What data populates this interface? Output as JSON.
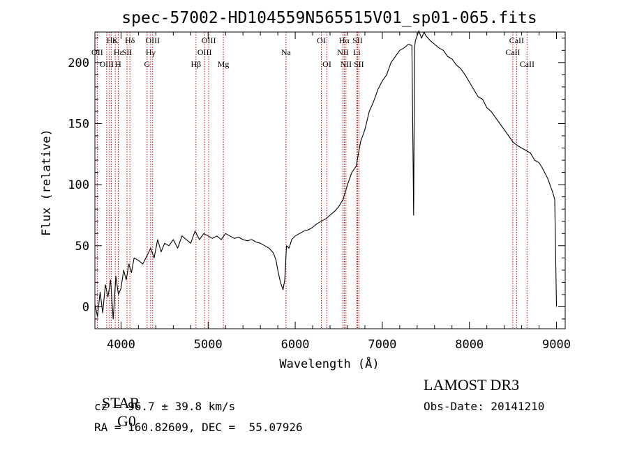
{
  "chart_data": {
    "type": "line",
    "title": "spec-57002-HD104559N565515V01_sp01-065.fits",
    "xlabel": "Wavelength (Å)",
    "ylabel": "Flux (relative)",
    "xlim": [
      3700,
      9100
    ],
    "ylim": [
      -18,
      225
    ],
    "xticks": [
      4000,
      5000,
      6000,
      7000,
      8000,
      9000
    ],
    "yticks": [
      0,
      50,
      100,
      150,
      200
    ],
    "grid": false,
    "line_color": "#000000",
    "marker_color": "#cc0000",
    "series": [
      {
        "x": [
          3700,
          3730,
          3760,
          3790,
          3820,
          3850,
          3880,
          3910,
          3940,
          3970,
          4000,
          4030,
          4060,
          4090,
          4120,
          4150,
          4200,
          4250,
          4300,
          4340,
          4380,
          4420,
          4460,
          4500,
          4550,
          4600,
          4650,
          4700,
          4750,
          4800,
          4850,
          4900,
          4950,
          5000,
          5050,
          5100,
          5150,
          5200,
          5250,
          5300,
          5350,
          5400,
          5450,
          5500,
          5550,
          5600,
          5650,
          5700,
          5750,
          5780,
          5800,
          5830,
          5860,
          5880,
          5900,
          5930,
          5960,
          6000,
          6050,
          6100,
          6150,
          6200,
          6250,
          6300,
          6350,
          6400,
          6450,
          6500,
          6550,
          6580,
          6600,
          6650,
          6700,
          6750,
          6800,
          6850,
          6900,
          6950,
          7000,
          7050,
          7100,
          7150,
          7200,
          7250,
          7300,
          7340,
          7360,
          7370,
          7380,
          7400,
          7420,
          7450,
          7480,
          7500,
          7550,
          7600,
          7650,
          7700,
          7750,
          7800,
          7850,
          7900,
          7950,
          8000,
          8050,
          8100,
          8150,
          8200,
          8250,
          8300,
          8350,
          8400,
          8450,
          8500,
          8550,
          8600,
          8650,
          8700,
          8750,
          8800,
          8850,
          8900,
          8950,
          8980,
          9000
        ],
        "y": [
          2,
          -8,
          12,
          -5,
          18,
          8,
          22,
          -10,
          25,
          10,
          15,
          30,
          22,
          35,
          28,
          40,
          38,
          35,
          42,
          48,
          40,
          55,
          45,
          52,
          50,
          55,
          48,
          58,
          55,
          52,
          62,
          55,
          60,
          58,
          56,
          58,
          55,
          60,
          58,
          56,
          57,
          55,
          54,
          55,
          53,
          52,
          50,
          48,
          44,
          38,
          30,
          20,
          14,
          22,
          50,
          48,
          55,
          58,
          60,
          62,
          63,
          65,
          68,
          70,
          72,
          75,
          78,
          82,
          88,
          95,
          100,
          110,
          115,
          135,
          145,
          160,
          168,
          178,
          185,
          190,
          200,
          205,
          210,
          212,
          215,
          214,
          75,
          212,
          218,
          222,
          226,
          220,
          225,
          222,
          218,
          215,
          212,
          210,
          205,
          203,
          198,
          195,
          190,
          184,
          178,
          172,
          170,
          163,
          160,
          155,
          150,
          145,
          140,
          135,
          132,
          130,
          128,
          126,
          120,
          118,
          112,
          105,
          95,
          88,
          0
        ]
      }
    ],
    "line_markers": [
      {
        "wl": 3727,
        "label": "OII",
        "row": 1
      },
      {
        "wl": 3835,
        "label": "OIII",
        "row": 2
      },
      {
        "wl": 3869,
        "label": "",
        "row": 0
      },
      {
        "wl": 3889,
        "label": "Hε",
        "row": 0
      },
      {
        "wl": 3934,
        "label": "K",
        "row": 0
      },
      {
        "wl": 3970,
        "label": "Hε",
        "row": 1
      },
      {
        "wl": 3968,
        "label": "H",
        "row": 2
      },
      {
        "wl": 4069,
        "label": "SII",
        "row": 1
      },
      {
        "wl": 4102,
        "label": "Hδ",
        "row": 0
      },
      {
        "wl": 4300,
        "label": "G",
        "row": 2
      },
      {
        "wl": 4340,
        "label": "Hγ",
        "row": 1
      },
      {
        "wl": 4363,
        "label": "OIII",
        "row": 0
      },
      {
        "wl": 4861,
        "label": "Hβ",
        "row": 2
      },
      {
        "wl": 4959,
        "label": "OIII",
        "row": 1
      },
      {
        "wl": 5007,
        "label": "OIII",
        "row": 0
      },
      {
        "wl": 5175,
        "label": "Mg",
        "row": 2
      },
      {
        "wl": 5894,
        "label": "Na",
        "row": 1
      },
      {
        "wl": 6300,
        "label": "OI",
        "row": 0
      },
      {
        "wl": 6364,
        "label": "OI",
        "row": 2
      },
      {
        "wl": 6548,
        "label": "NII",
        "row": 1
      },
      {
        "wl": 6563,
        "label": "Hα",
        "row": 0
      },
      {
        "wl": 6583,
        "label": "NII",
        "row": 2
      },
      {
        "wl": 6708,
        "label": "Li",
        "row": 1
      },
      {
        "wl": 6716,
        "label": "SII",
        "row": 0
      },
      {
        "wl": 6731,
        "label": "SII",
        "row": 2
      },
      {
        "wl": 8498,
        "label": "CaII",
        "row": 1
      },
      {
        "wl": 8542,
        "label": "CaII",
        "row": 0
      },
      {
        "wl": 8662,
        "label": "CaII",
        "row": 2
      }
    ]
  },
  "info": {
    "class_label": "STAR",
    "subclass": "G0",
    "survey": "LAMOST DR3",
    "cz": "cz = 96.7 ± 39.8 km/s",
    "obs_date": "Obs-Date: 20141210",
    "coords": "RA = 160.82609, DEC =  55.07926"
  }
}
